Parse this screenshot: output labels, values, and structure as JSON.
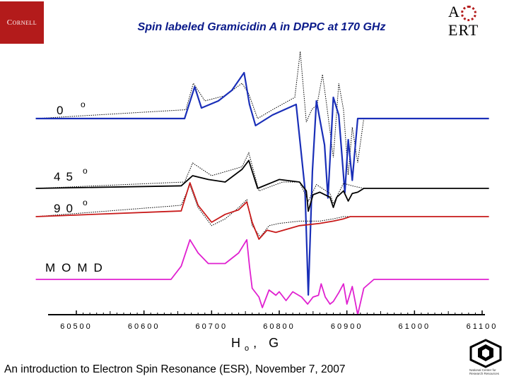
{
  "logos": {
    "cornell": "Cornell",
    "acert": [
      "A",
      "ERT"
    ],
    "ncrr": "National Center for Research Resources"
  },
  "title": "Spin labeled Gramicidin A in DPPC at 170 GHz",
  "footer": "An introduction to Electron Spin Resonance (ESR), November 7, 2007",
  "colors": {
    "blue": "#1a2fb8",
    "black": "#000000",
    "red": "#c81a1a",
    "magenta": "#e020d0",
    "title": "#0a1a8a"
  },
  "chart_data": {
    "type": "line",
    "title": "Spin labeled Gramicidin A in DPPC at 170 GHz",
    "xlabel": "H",
    "xlabel_subscript": "o",
    "xlabel_suffix": ",  G",
    "xlim": [
      60440,
      61110
    ],
    "xticks": [
      60500,
      60600,
      60700,
      60800,
      60900,
      61000,
      61100
    ],
    "series": [
      {
        "name": "0°",
        "label": "0",
        "color": "#1a2fb8",
        "fit_style": "dotted",
        "baseline": 0,
        "x": [
          60440,
          60660,
          60675,
          60685,
          60710,
          60730,
          60748,
          60756,
          60765,
          60790,
          60825,
          60838,
          60843,
          60849,
          60855,
          60867,
          60872,
          60880,
          60888,
          60897,
          60902,
          60908,
          60916,
          60925,
          61110
        ],
        "fit_x": [
          60440,
          60662,
          60673,
          60690,
          60720,
          60745,
          60755,
          60768,
          60790,
          60823,
          60831,
          60840,
          60848,
          60856,
          60864,
          60870,
          60880,
          60888,
          60895,
          60902,
          60908,
          60916,
          60925,
          61110
        ],
        "fit_values": [
          0,
          5,
          20,
          10,
          13,
          20,
          14,
          0,
          5,
          12,
          38,
          -2,
          5,
          8,
          25,
          8,
          -22,
          20,
          5,
          -32,
          -5,
          -25,
          0,
          0
        ]
      },
      {
        "name": "45°",
        "label": "45",
        "color": "#000000",
        "fit_style": "dotted",
        "baseline": 0,
        "x": [
          60440,
          60655,
          60672,
          60695,
          60720,
          60745,
          60755,
          60768,
          60800,
          60830,
          60840,
          60843,
          60850,
          60860,
          60875,
          60880,
          60885,
          60895,
          60902,
          60908,
          60916,
          60925,
          61110
        ],
        "values": [
          0,
          2,
          10,
          7,
          5,
          15,
          22,
          0,
          7,
          5,
          -2,
          -18,
          -5,
          -3,
          -7,
          -15,
          -7,
          -2,
          -10,
          -4,
          -3,
          0,
          0
        ],
        "fit_x": [
          60440,
          60660,
          60672,
          60700,
          60745,
          60755,
          60770,
          60805,
          60830,
          60843,
          60855,
          60875,
          60880,
          60895,
          60908,
          60925,
          61110
        ],
        "fit_values": [
          0,
          5,
          20,
          10,
          17,
          28,
          -2,
          5,
          5,
          -10,
          3,
          -4,
          -12,
          4,
          2,
          0,
          0
        ]
      },
      {
        "name": "90°",
        "label": "90",
        "color": "#c81a1a",
        "fit_style": "dotted",
        "baseline": 0,
        "x": [
          60440,
          60655,
          60668,
          60680,
          60700,
          60720,
          60740,
          60752,
          60760,
          60770,
          60782,
          60795,
          60830,
          60860,
          60880,
          60895,
          60905,
          61110
        ],
        "values": [
          0,
          5,
          30,
          10,
          -5,
          2,
          6,
          13,
          -5,
          -20,
          -12,
          -14,
          -8,
          -6,
          -4,
          -2,
          0,
          0
        ],
        "fit_x": [
          60440,
          60655,
          60668,
          60680,
          60700,
          60720,
          60740,
          60752,
          60760,
          60772,
          60785,
          60800,
          60830,
          60860,
          60880,
          60895,
          60905,
          61110
        ],
        "fit_values": [
          0,
          10,
          28,
          8,
          -8,
          -2,
          8,
          15,
          -8,
          -18,
          -8,
          -6,
          -4,
          -4,
          -2,
          0,
          0,
          0
        ]
      },
      {
        "name": "MOMD",
        "label": "MOMD",
        "color": "#e020d0",
        "baseline": 0,
        "x": [
          60440,
          60640,
          60655,
          60668,
          60680,
          60695,
          60720,
          60740,
          60752,
          60756,
          60760,
          60770,
          60775,
          60785,
          60795,
          60800,
          60810,
          60820,
          60833,
          60842,
          60850,
          60858,
          60862,
          60868,
          60875,
          60880,
          60888,
          60895,
          60900,
          60908,
          60916,
          60925,
          60940,
          61110
        ],
        "values": [
          0,
          0,
          15,
          45,
          30,
          18,
          18,
          30,
          45,
          15,
          -10,
          -20,
          -32,
          -12,
          -18,
          -14,
          -24,
          -14,
          -20,
          -28,
          -20,
          -18,
          -5,
          -20,
          -28,
          -25,
          -15,
          -5,
          -28,
          -8,
          -40,
          -10,
          0,
          0
        ]
      }
    ]
  }
}
